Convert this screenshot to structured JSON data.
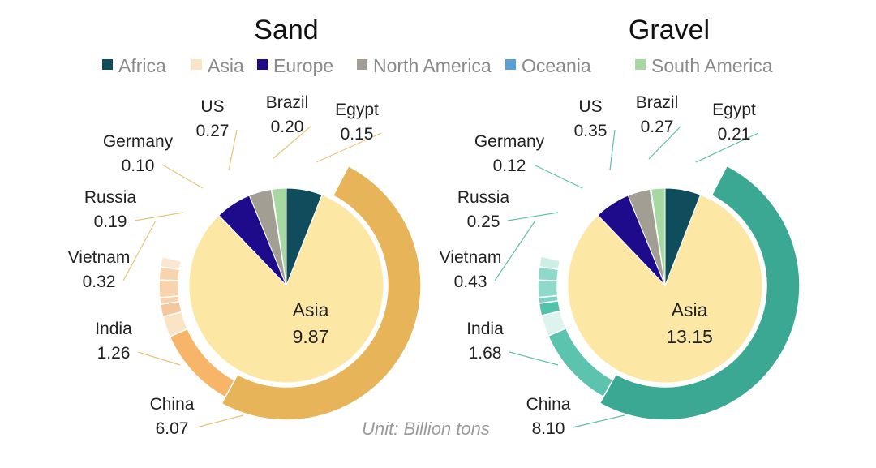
{
  "unit": "Unit: Billion tons",
  "legend": [
    {
      "name": "Africa",
      "color": "#0f4c5c"
    },
    {
      "name": "Asia",
      "color": "#fbe4c6"
    },
    {
      "name": "Europe",
      "color": "#1d0b8c"
    },
    {
      "name": "North America",
      "color": "#a39e93"
    },
    {
      "name": "Oceania",
      "color": "#5aa0d6"
    },
    {
      "name": "South America",
      "color": "#a8d8a1"
    }
  ],
  "chart_data": [
    {
      "type": "pie",
      "title": "Sand",
      "center_label": {
        "name": "Asia",
        "value": "9.87"
      },
      "inner_fill": "#fce8a4",
      "inner_slices": [
        {
          "name": "Africa",
          "value": 0.72,
          "color": "#0f4c5c"
        },
        {
          "name": "Asia",
          "value": 9.87,
          "color": "#fce8a4"
        },
        {
          "name": "Europe",
          "value": 0.72,
          "color": "#1d0b8c"
        },
        {
          "name": "North America",
          "value": 0.45,
          "color": "#a39e93"
        },
        {
          "name": "Oceania",
          "value": 0.02,
          "color": "#5aa0d6"
        },
        {
          "name": "South America",
          "value": 0.28,
          "color": "#a8d8a1"
        }
      ],
      "outer_segments": [
        {
          "name": "China",
          "value": 6.07,
          "label": "China\n6.07",
          "color": "#e8b45a"
        },
        {
          "name": "India",
          "value": 1.26,
          "label": "India\n1.26",
          "color": "#f7b56a"
        },
        {
          "name": "Vietnam",
          "value": 0.32,
          "label": "Vietnam\n0.32",
          "color": "#fbe4c6"
        },
        {
          "name": "Russia",
          "value": 0.19,
          "label": "Russia\n0.19",
          "color": "#f6c69c"
        },
        {
          "name": "Germany",
          "value": 0.1,
          "label": "Germany\n0.10",
          "color": "#f8d4ae"
        },
        {
          "name": "US",
          "value": 0.27,
          "label": "US\n0.27",
          "color": "#f8d4ae"
        },
        {
          "name": "Brazil",
          "value": 0.2,
          "label": "Brazil\n0.20",
          "color": "#f8d4ae"
        },
        {
          "name": "Egypt",
          "value": 0.15,
          "label": "Egypt\n0.15",
          "color": "#fde6cf"
        }
      ]
    },
    {
      "type": "pie",
      "title": "Gravel",
      "center_label": {
        "name": "Asia",
        "value": "13.15"
      },
      "inner_fill": "#fce8a4",
      "inner_slices": [
        {
          "name": "Africa",
          "value": 0.95,
          "color": "#0f4c5c"
        },
        {
          "name": "Asia",
          "value": 13.15,
          "color": "#fce8a4"
        },
        {
          "name": "Europe",
          "value": 0.95,
          "color": "#1d0b8c"
        },
        {
          "name": "North America",
          "value": 0.6,
          "color": "#a39e93"
        },
        {
          "name": "Oceania",
          "value": 0.03,
          "color": "#5aa0d6"
        },
        {
          "name": "South America",
          "value": 0.37,
          "color": "#a8d8a1"
        }
      ],
      "outer_segments": [
        {
          "name": "China",
          "value": 8.1,
          "label": "China\n8.10",
          "color": "#3aa892"
        },
        {
          "name": "India",
          "value": 1.68,
          "label": "India\n1.68",
          "color": "#5cc4ae"
        },
        {
          "name": "Vietnam",
          "value": 0.43,
          "label": "Vietnam\n0.43",
          "color": "#dff3ee"
        },
        {
          "name": "Russia",
          "value": 0.25,
          "label": "Russia\n0.25",
          "color": "#52c2aa"
        },
        {
          "name": "Germany",
          "value": 0.12,
          "label": "Germany\n0.12",
          "color": "#7fd3c2"
        },
        {
          "name": "US",
          "value": 0.35,
          "label": "US\n0.35",
          "color": "#8fd9cb"
        },
        {
          "name": "Brazil",
          "value": 0.27,
          "label": "Brazil\n0.27",
          "color": "#8fd9cb"
        },
        {
          "name": "Egypt",
          "value": 0.21,
          "label": "Egypt\n0.21",
          "color": "#cdeee6"
        }
      ]
    }
  ]
}
